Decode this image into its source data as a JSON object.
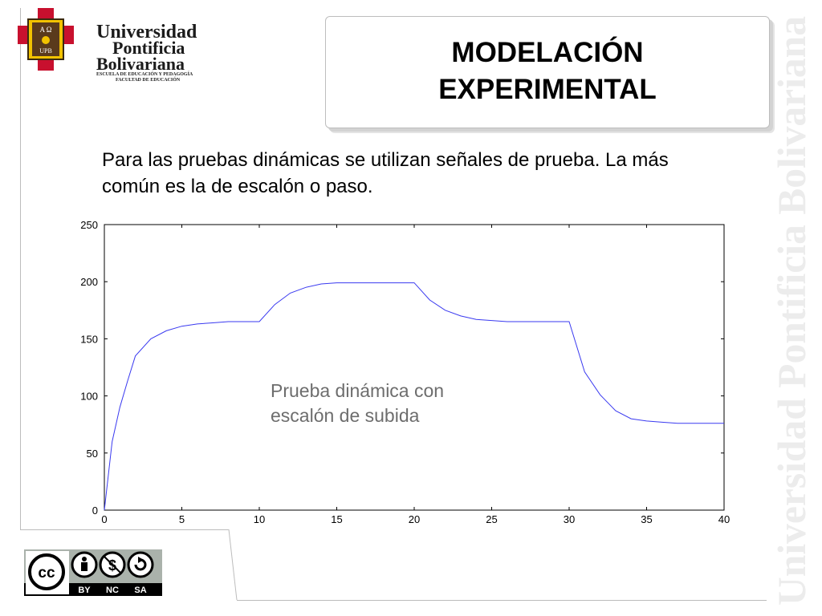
{
  "logo": {
    "line1": "Universidad",
    "line2": "Pontificia",
    "line3": "Bolivariana",
    "subline1": "ESCUELA DE EDUCACIÓN Y PEDAGOGÍA",
    "subline2": "FACULTAD DE EDUCACIÓN",
    "emblem_text1": "A Ω",
    "emblem_text2": "UPB"
  },
  "title": {
    "line1": "MODELACIÓN",
    "line2": "EXPERIMENTAL"
  },
  "body": {
    "paragraph": "Para las pruebas dinámicas se utilizan señales de prueba. La más común es la de escalón o paso."
  },
  "watermark": "Universidad Pontificia Bolivariana",
  "license": {
    "cc": "cc",
    "labels": [
      "BY",
      "NC",
      "SA"
    ]
  },
  "chart_data": {
    "type": "line",
    "xlim": [
      0,
      40
    ],
    "ylim": [
      0,
      250
    ],
    "xticks": [
      0,
      5,
      10,
      15,
      20,
      25,
      30,
      35,
      40
    ],
    "yticks": [
      0,
      50,
      100,
      150,
      200,
      250
    ],
    "x": [
      0,
      0.5,
      1,
      1.5,
      2,
      3,
      4,
      5,
      6,
      7,
      8,
      9,
      10,
      11,
      12,
      13,
      14,
      15,
      16,
      17,
      18,
      19,
      20,
      21,
      22,
      23,
      24,
      25,
      26,
      27,
      28,
      29,
      30,
      31,
      32,
      33,
      34,
      35,
      36,
      37,
      38,
      39,
      40
    ],
    "series": [
      {
        "color": "#3a3af0",
        "values": [
          0,
          60,
          90,
          113,
          135,
          150,
          157,
          161,
          163,
          164,
          165,
          165,
          165,
          180,
          190,
          195,
          198,
          199,
          199,
          199,
          199,
          199,
          199,
          184,
          175,
          170,
          167,
          166,
          165,
          165,
          165,
          165,
          165,
          121,
          101,
          87,
          80,
          78,
          77,
          76,
          76,
          76,
          76
        ]
      }
    ],
    "annotation": "Prueba dinámica con escalón de subida",
    "grid": false
  }
}
